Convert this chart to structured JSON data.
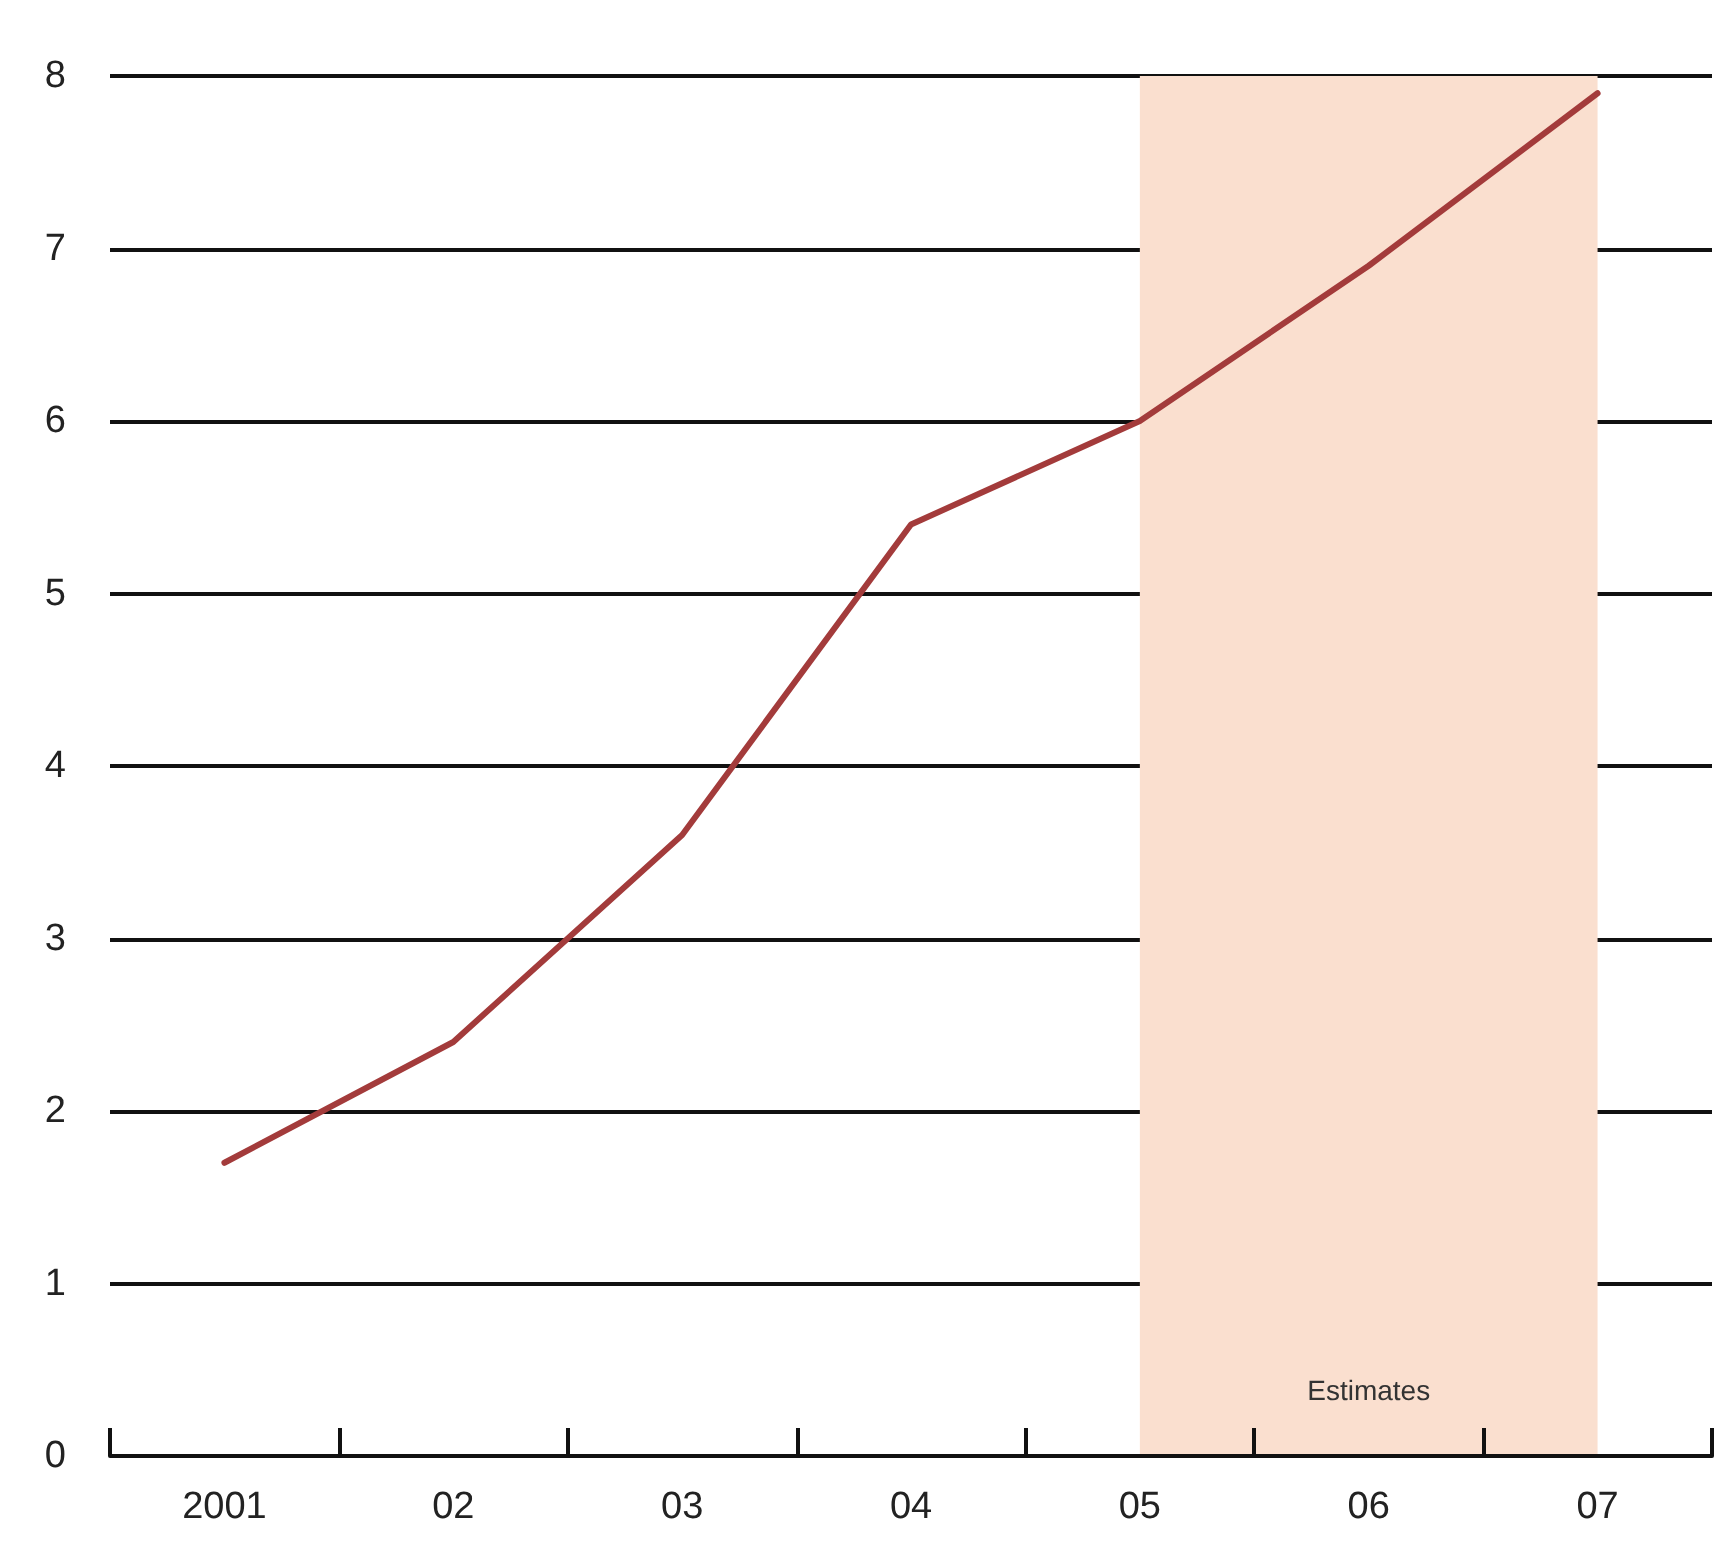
{
  "chart_data": {
    "type": "line",
    "categories": [
      "2001",
      "02",
      "03",
      "04",
      "05",
      "06",
      "07"
    ],
    "series": [
      {
        "color": "#a33b3b",
        "values": [
          1.7,
          2.4,
          3.6,
          5.4,
          6.0,
          6.9,
          7.9
        ]
      }
    ],
    "ylim": [
      0,
      8
    ],
    "yticks": [
      0,
      1,
      2,
      3,
      4,
      5,
      6,
      7,
      8
    ],
    "grid": "y",
    "marker": "none",
    "line_style": "solid",
    "bands": [
      {
        "axis": "x",
        "from": "05",
        "to": "07",
        "label": "Estimates",
        "color": "#fadfcf"
      }
    ]
  }
}
